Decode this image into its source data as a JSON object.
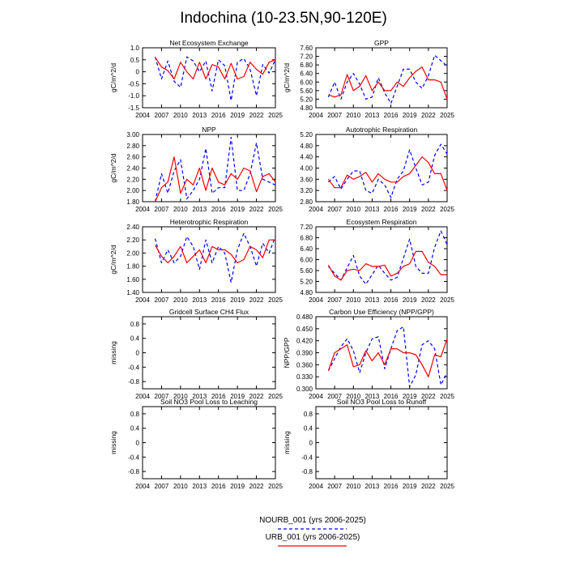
{
  "title": "Indochina (10-23.5N,90-120E)",
  "xticks": [
    "2004",
    "2007",
    "2010",
    "2013",
    "2016",
    "2019",
    "2022",
    "2025"
  ],
  "xrange": [
    2004,
    2025
  ],
  "years": [
    2006,
    2007,
    2008,
    2009,
    2010,
    2011,
    2012,
    2013,
    2014,
    2015,
    2016,
    2017,
    2018,
    2019,
    2020,
    2021,
    2022,
    2023,
    2024,
    2025
  ],
  "legend": {
    "nourb_label": "NOURB_001 (yrs 2006-2025)",
    "urb_label": "URB_001 (yrs 2006-2025)",
    "nourb_color": "#0000ff",
    "urb_color": "#ff0000"
  },
  "chart_data": [
    {
      "type": "line",
      "id": "nee",
      "title": "Net Ecosystem Exchange",
      "ylabel": "gC/m^2/d",
      "ylim": [
        -1.5,
        1.0
      ],
      "yticks": [
        "1.0",
        "0.5",
        "0",
        "-0.5",
        "-1.0",
        "-1.5"
      ],
      "ytick_values": [
        1.0,
        0.5,
        0,
        -0.5,
        -1.0,
        -1.5
      ],
      "series": [
        {
          "name": "NOURB_001",
          "values": [
            0.62,
            -0.3,
            0.45,
            -0.4,
            -0.65,
            0.62,
            0.45,
            0.0,
            0.45,
            -0.8,
            0.5,
            0.25,
            -1.2,
            0.4,
            0.55,
            0.1,
            -1.0,
            0.3,
            -0.05,
            0.5
          ]
        },
        {
          "name": "URB_001",
          "values": [
            0.6,
            0.2,
            0.05,
            -0.3,
            0.4,
            0.0,
            -0.3,
            0.4,
            -0.3,
            0.3,
            0.2,
            -0.3,
            0.35,
            -0.3,
            -0.2,
            0.4,
            0.1,
            -0.1,
            0.4,
            0.5
          ]
        }
      ]
    },
    {
      "type": "line",
      "id": "gpp",
      "title": "GPP",
      "ylabel": "gC/m^2/d",
      "ylim": [
        4.8,
        7.6
      ],
      "yticks": [
        "7.60",
        "7.20",
        "6.80",
        "6.40",
        "6.00",
        "5.60",
        "5.20",
        "4.80"
      ],
      "ytick_values": [
        7.6,
        7.2,
        6.8,
        6.4,
        6.0,
        5.6,
        5.2,
        4.8
      ],
      "series": [
        {
          "name": "NOURB_001",
          "values": [
            5.3,
            6.0,
            5.2,
            6.0,
            6.4,
            5.9,
            5.2,
            5.3,
            6.2,
            5.5,
            5.0,
            5.8,
            6.6,
            6.6,
            6.0,
            5.7,
            6.3,
            7.25,
            7.0,
            6.75
          ]
        },
        {
          "name": "URB_001",
          "values": [
            5.4,
            5.3,
            5.4,
            6.35,
            5.6,
            5.8,
            6.3,
            5.6,
            6.0,
            5.6,
            5.6,
            6.0,
            5.8,
            6.2,
            6.5,
            6.7,
            6.1,
            6.1,
            6.0,
            5.2
          ]
        }
      ]
    },
    {
      "type": "line",
      "id": "npp",
      "title": "NPP",
      "ylabel": "gC/m^2/d",
      "ylim": [
        1.8,
        3.0
      ],
      "yticks": [
        "3.00",
        "2.80",
        "2.60",
        "2.40",
        "2.20",
        "2.00",
        "1.80"
      ],
      "ytick_values": [
        3.0,
        2.8,
        2.6,
        2.4,
        2.2,
        2.0,
        1.8
      ],
      "series": [
        {
          "name": "NOURB_001",
          "values": [
            1.8,
            2.3,
            1.95,
            2.35,
            2.55,
            1.85,
            2.0,
            2.2,
            2.75,
            1.95,
            2.05,
            2.05,
            2.95,
            2.0,
            2.0,
            2.3,
            2.85,
            2.2,
            2.15,
            2.1
          ]
        },
        {
          "name": "URB_001",
          "values": [
            1.8,
            2.05,
            2.15,
            2.6,
            1.95,
            2.2,
            2.1,
            2.4,
            2.0,
            2.4,
            2.15,
            2.1,
            2.3,
            2.2,
            2.4,
            2.35,
            1.98,
            2.25,
            2.3,
            2.15
          ]
        }
      ]
    },
    {
      "type": "line",
      "id": "ar",
      "title": "Autotrophic Respiration",
      "ylabel": "",
      "ylim": [
        2.8,
        5.2
      ],
      "yticks": [
        "5.20",
        "4.80",
        "4.40",
        "4.00",
        "3.60",
        "3.20",
        "2.80"
      ],
      "ytick_values": [
        5.2,
        4.8,
        4.4,
        4.0,
        3.6,
        3.2,
        2.8
      ],
      "series": [
        {
          "name": "NOURB_001",
          "values": [
            3.5,
            3.7,
            3.25,
            3.6,
            3.9,
            3.9,
            3.2,
            3.1,
            3.6,
            3.4,
            2.95,
            3.6,
            3.9,
            4.65,
            4.0,
            3.4,
            3.5,
            4.45,
            4.85,
            4.5
          ]
        },
        {
          "name": "URB_001",
          "values": [
            3.6,
            3.3,
            3.3,
            3.75,
            3.6,
            3.7,
            3.85,
            3.5,
            3.8,
            3.6,
            3.5,
            3.5,
            3.7,
            3.8,
            4.1,
            4.4,
            4.2,
            3.8,
            3.8,
            3.2
          ]
        }
      ]
    },
    {
      "type": "line",
      "id": "hr",
      "title": "Heterotrophic Respiration",
      "ylabel": "gC/m^2/d",
      "ylim": [
        1.4,
        2.4
      ],
      "yticks": [
        "2.40",
        "2.20",
        "2.00",
        "1.80",
        "1.60",
        "1.40"
      ],
      "ytick_values": [
        2.4,
        2.2,
        2.0,
        1.8,
        1.6,
        1.4
      ],
      "series": [
        {
          "name": "NOURB_001",
          "values": [
            2.22,
            1.85,
            2.05,
            1.85,
            1.95,
            2.25,
            2.1,
            1.75,
            2.2,
            1.85,
            2.1,
            2.0,
            1.55,
            2.05,
            2.3,
            2.1,
            1.8,
            2.15,
            2.0,
            2.25
          ]
        },
        {
          "name": "URB_001",
          "values": [
            2.12,
            1.95,
            1.85,
            1.95,
            2.1,
            1.85,
            1.95,
            2.05,
            1.85,
            2.1,
            2.05,
            2.05,
            1.98,
            1.85,
            1.9,
            2.1,
            2.05,
            1.93,
            2.2,
            2.2
          ]
        }
      ]
    },
    {
      "type": "line",
      "id": "er",
      "title": "Ecosystem Respiration",
      "ylabel": "",
      "ylim": [
        4.8,
        7.2
      ],
      "yticks": [
        "7.20",
        "6.80",
        "6.40",
        "6.00",
        "5.60",
        "5.20",
        "4.80"
      ],
      "ytick_values": [
        7.2,
        6.8,
        6.4,
        6.0,
        5.6,
        5.2,
        4.8
      ],
      "series": [
        {
          "name": "NOURB_001",
          "values": [
            5.75,
            5.5,
            5.25,
            5.7,
            6.15,
            5.4,
            5.1,
            5.45,
            5.8,
            5.5,
            5.25,
            5.35,
            6.05,
            6.75,
            5.75,
            5.5,
            5.5,
            6.45,
            7.05,
            6.55
          ]
        },
        {
          "name": "URB_001",
          "values": [
            5.8,
            5.4,
            5.25,
            5.6,
            5.65,
            5.6,
            5.85,
            5.75,
            5.75,
            5.8,
            5.4,
            5.5,
            5.75,
            5.85,
            6.3,
            6.3,
            5.9,
            5.75,
            5.45,
            5.45
          ]
        }
      ]
    },
    {
      "type": "line",
      "id": "ch4",
      "title": "Gridcell Surface CH4 Flux",
      "ylabel": "missing",
      "ylim": [
        -1.0,
        1.0
      ],
      "yticks": [
        "0.8",
        "0.4",
        "0",
        "-0.4",
        "-0.8"
      ],
      "ytick_values": [
        0.8,
        0.4,
        0,
        -0.4,
        -0.8
      ],
      "series": []
    },
    {
      "type": "line",
      "id": "cue",
      "title": "Carbon Use Efficiency (NPP/GPP)",
      "ylabel": "NPP/GPP",
      "ylim": [
        0.3,
        0.48
      ],
      "yticks": [
        "0.480",
        "0.450",
        "0.420",
        "0.390",
        "0.360",
        "0.330",
        "0.300"
      ],
      "ytick_values": [
        0.48,
        0.45,
        0.42,
        0.39,
        0.36,
        0.33,
        0.3
      ],
      "series": [
        {
          "name": "NOURB_001",
          "values": [
            0.345,
            0.375,
            0.405,
            0.425,
            0.395,
            0.34,
            0.39,
            0.425,
            0.43,
            0.35,
            0.4,
            0.445,
            0.455,
            0.305,
            0.335,
            0.41,
            0.42,
            0.4,
            0.31,
            0.34
          ]
        },
        {
          "name": "URB_001",
          "values": [
            0.345,
            0.39,
            0.4,
            0.41,
            0.355,
            0.36,
            0.395,
            0.37,
            0.39,
            0.36,
            0.4,
            0.4,
            0.39,
            0.39,
            0.385,
            0.36,
            0.33,
            0.385,
            0.38,
            0.425
          ]
        }
      ]
    },
    {
      "type": "line",
      "id": "no3leach",
      "title": "Soil NO3 Pool Loss to Leaching",
      "ylabel": "missing",
      "ylim": [
        -1.0,
        1.0
      ],
      "yticks": [
        "0.8",
        "0.4",
        "0",
        "-0.4",
        "-0.8"
      ],
      "ytick_values": [
        0.8,
        0.4,
        0,
        -0.4,
        -0.8
      ],
      "series": []
    },
    {
      "type": "line",
      "id": "no3runoff",
      "title": "Soil NO3 Pool Loss to Runoff",
      "ylabel": "missing",
      "ylim": [
        -1.0,
        1.0
      ],
      "yticks": [
        "0.8",
        "0.4",
        "0",
        "-0.4",
        "-0.8"
      ],
      "ytick_values": [
        0.8,
        0.4,
        0,
        -0.4,
        -0.8
      ],
      "series": []
    }
  ]
}
